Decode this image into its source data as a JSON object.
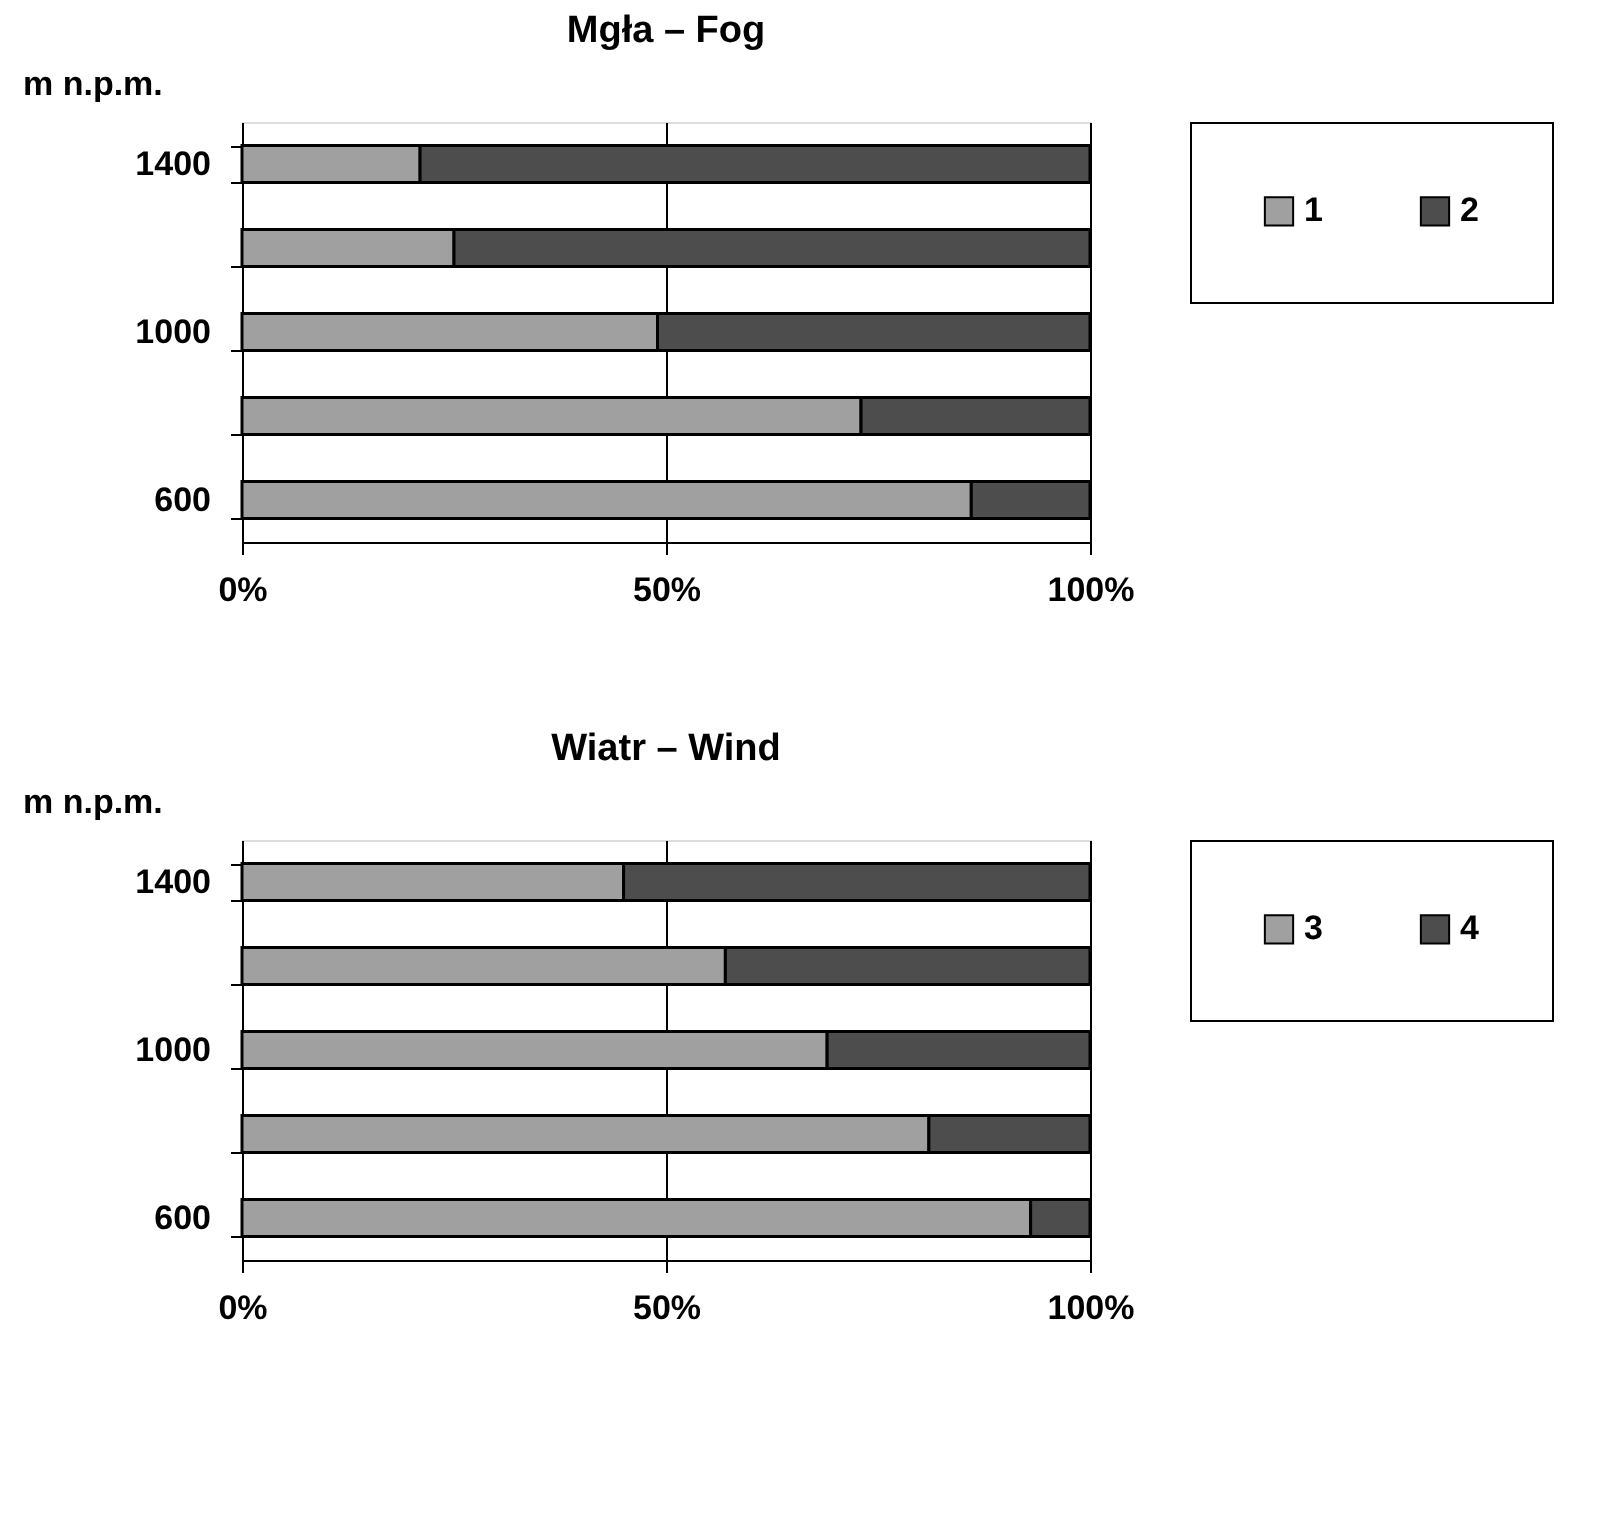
{
  "chart_data": [
    {
      "type": "bar",
      "orientation": "horizontal",
      "stacked": true,
      "title": "Mgła – Fog",
      "ylabel": "m n.p.m.",
      "categories": [
        "1400",
        null,
        "1000",
        null,
        "600"
      ],
      "series": [
        {
          "name": "1",
          "color": "#a0a0a0",
          "values": [
            21,
            25,
            49,
            73,
            86
          ]
        },
        {
          "name": "2",
          "color": "#4d4d4d",
          "values": [
            79,
            75,
            51,
            27,
            14
          ]
        }
      ],
      "xlim": [
        0,
        100
      ],
      "xticks": [
        {
          "value": 0,
          "label": "0%"
        },
        {
          "value": 50,
          "label": "50%"
        },
        {
          "value": 100,
          "label": "100%"
        }
      ],
      "grid": "x",
      "legend": "right"
    },
    {
      "type": "bar",
      "orientation": "horizontal",
      "stacked": true,
      "title": "Wiatr – Wind",
      "ylabel": "m n.p.m.",
      "categories": [
        "1400",
        null,
        "1000",
        null,
        "600"
      ],
      "series": [
        {
          "name": "3",
          "color": "#a0a0a0",
          "values": [
            45,
            57,
            69,
            81,
            93
          ]
        },
        {
          "name": "4",
          "color": "#4d4d4d",
          "values": [
            55,
            43,
            31,
            19,
            7
          ]
        }
      ],
      "xlim": [
        0,
        100
      ],
      "xticks": [
        {
          "value": 0,
          "label": "0%"
        },
        {
          "value": 50,
          "label": "50%"
        },
        {
          "value": 100,
          "label": "100%"
        }
      ],
      "grid": "x",
      "legend": "right"
    }
  ]
}
